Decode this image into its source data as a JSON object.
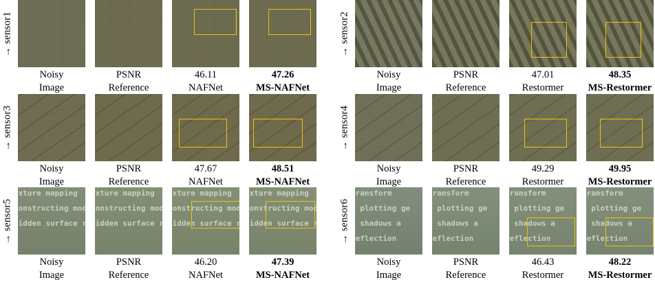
{
  "colors": {
    "highlight_box": "#f2c012"
  },
  "panels": [
    {
      "rows": [
        {
          "sensor": "→ sensor1",
          "tone": "#6b6a4d",
          "pattern": "noise",
          "cells": [
            {
              "top": "Noisy",
              "bottom": "Image",
              "bold": false,
              "box": false
            },
            {
              "top": "PSNR",
              "bottom": "Reference",
              "bold": false,
              "box": false
            },
            {
              "top": "46.11",
              "bottom": "NAFNet",
              "bold": false,
              "box": true
            },
            {
              "top": "47.26",
              "bottom": "MS-NAFNet",
              "bold": true,
              "box": true
            }
          ]
        },
        {
          "sensor": "→ sensor3",
          "tone": "#6f6a4c",
          "pattern": "diagonal",
          "cells": [
            {
              "top": "Noisy",
              "bottom": "Image",
              "bold": false,
              "box": false
            },
            {
              "top": "PSNR",
              "bottom": "Reference",
              "bold": false,
              "box": false
            },
            {
              "top": "47.67",
              "bottom": "NAFNet",
              "bold": false,
              "box": true
            },
            {
              "top": "48.51",
              "bottom": "MS-NAFNet",
              "bold": true,
              "box": true
            }
          ]
        },
        {
          "sensor": "→ sensor5",
          "tone": "#7e8a6f",
          "pattern": "doc",
          "doc_lines": [
            "exture mapping",
            "constructing mod",
            "hidden surface r"
          ],
          "cells": [
            {
              "top": "Noisy",
              "bottom": "Image",
              "bold": false,
              "box": false
            },
            {
              "top": "PSNR",
              "bottom": "Reference",
              "bold": false,
              "box": false
            },
            {
              "top": "46.20",
              "bottom": "NAFNet",
              "bold": false,
              "box": true
            },
            {
              "top": "47.39",
              "bottom": "MS-NAFNet",
              "bold": true,
              "box": true
            }
          ]
        }
      ]
    },
    {
      "rows": [
        {
          "sensor": "→ sensor2",
          "tone": "#6a6c50",
          "pattern": "stripes",
          "cells": [
            {
              "top": "Noisy",
              "bottom": "Image",
              "bold": false,
              "box": false
            },
            {
              "top": "PSNR",
              "bottom": "Reference",
              "bold": false,
              "box": false
            },
            {
              "top": "47.01",
              "bottom": "Restormer",
              "bold": false,
              "box": true
            },
            {
              "top": "48.35",
              "bottom": "MS-Restormer",
              "bold": true,
              "box": true
            }
          ]
        },
        {
          "sensor": "→ sensor4",
          "tone": "#6e6f52",
          "pattern": "diagonal",
          "cells": [
            {
              "top": "Noisy",
              "bottom": "Image",
              "bold": false,
              "box": false
            },
            {
              "top": "PSNR",
              "bottom": "Reference",
              "bold": false,
              "box": false
            },
            {
              "top": "49.29",
              "bottom": "Restormer",
              "bold": false,
              "box": true
            },
            {
              "top": "49.95",
              "bottom": "MS-Restormer",
              "bold": true,
              "box": true
            }
          ]
        },
        {
          "sensor": "→ sensor6",
          "tone": "#7c8a74",
          "pattern": "doc",
          "doc_lines": [
            "transform",
            "• plotting ge",
            "• shadows a",
            "  reflection"
          ],
          "cells": [
            {
              "top": "Noisy",
              "bottom": "Image",
              "bold": false,
              "box": false
            },
            {
              "top": "PSNR",
              "bottom": "Reference",
              "bold": false,
              "box": false
            },
            {
              "top": "46.43",
              "bottom": "Restormer",
              "bold": false,
              "box": true
            },
            {
              "top": "48.22",
              "bottom": "MS-Restormer",
              "bold": true,
              "box": true
            }
          ]
        }
      ]
    }
  ]
}
